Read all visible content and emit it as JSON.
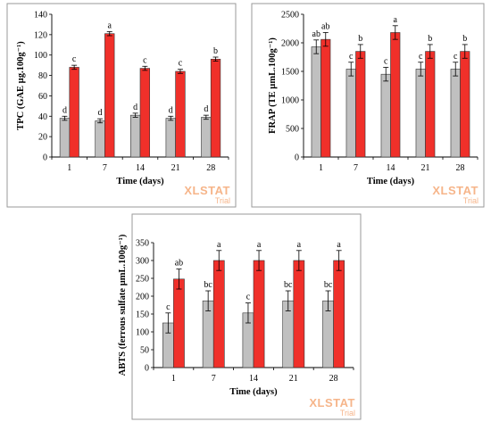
{
  "colors": {
    "series_a": "#c0c0c0",
    "series_b": "#f0302a",
    "frame": "#9a9a9a",
    "watermark": "#f6b58a"
  },
  "watermark": {
    "main": "XLSTAT",
    "sub": "Trial"
  },
  "chart_data": [
    {
      "type": "bar",
      "categories": [
        "1",
        "7",
        "14",
        "21",
        "28"
      ],
      "xlabel": "Time (days)",
      "ylabel": "TPC (GAE µg.100g⁻¹)",
      "ylim": [
        0,
        140
      ],
      "yticks": [
        0,
        20,
        40,
        60,
        80,
        100,
        120,
        140
      ],
      "series": [
        {
          "values": [
            38,
            35.5,
            41,
            38,
            39
          ],
          "errors": [
            2,
            2,
            2,
            2,
            2
          ],
          "letters": [
            "d",
            "d",
            "d",
            "d",
            "d"
          ]
        },
        {
          "values": [
            88,
            121,
            87,
            84,
            96
          ],
          "errors": [
            2,
            2,
            2,
            2,
            2
          ],
          "letters": [
            "c",
            "a",
            "c",
            "c",
            "b"
          ]
        }
      ]
    },
    {
      "type": "bar",
      "categories": [
        "1",
        "7",
        "14",
        "21",
        "28"
      ],
      "xlabel": "Time (days)",
      "ylabel": "FRAP (TE µmL.100g⁻¹)",
      "ylim": [
        0,
        2500
      ],
      "yticks": [
        0,
        500,
        1000,
        1500,
        2000,
        2500
      ],
      "series": [
        {
          "values": [
            1930,
            1540,
            1450,
            1540,
            1540
          ],
          "errors": [
            120,
            120,
            120,
            120,
            120
          ],
          "letters": [
            "ab",
            "c",
            "c",
            "c",
            "c"
          ]
        },
        {
          "values": [
            2060,
            1850,
            2180,
            1850,
            1850
          ],
          "errors": [
            120,
            120,
            120,
            120,
            120
          ],
          "letters": [
            "ab",
            "b",
            "a",
            "b",
            "b"
          ]
        }
      ]
    },
    {
      "type": "bar",
      "categories": [
        "1",
        "7",
        "14",
        "21",
        "28"
      ],
      "xlabel": "Time (days)",
      "ylabel": "ABTS (ferrous sulfate µmL.100g⁻¹)",
      "ylim": [
        0,
        350
      ],
      "yticks": [
        0,
        50,
        100,
        150,
        200,
        250,
        300,
        350
      ],
      "series": [
        {
          "values": [
            125,
            187,
            153,
            187,
            187
          ],
          "errors": [
            28,
            28,
            28,
            28,
            28
          ],
          "letters": [
            "c",
            "bc",
            "c",
            "bc",
            "bc"
          ]
        },
        {
          "values": [
            248,
            300,
            300,
            300,
            300
          ],
          "errors": [
            28,
            28,
            28,
            28,
            28
          ],
          "letters": [
            "ab",
            "a",
            "a",
            "a",
            "a"
          ]
        }
      ]
    }
  ]
}
